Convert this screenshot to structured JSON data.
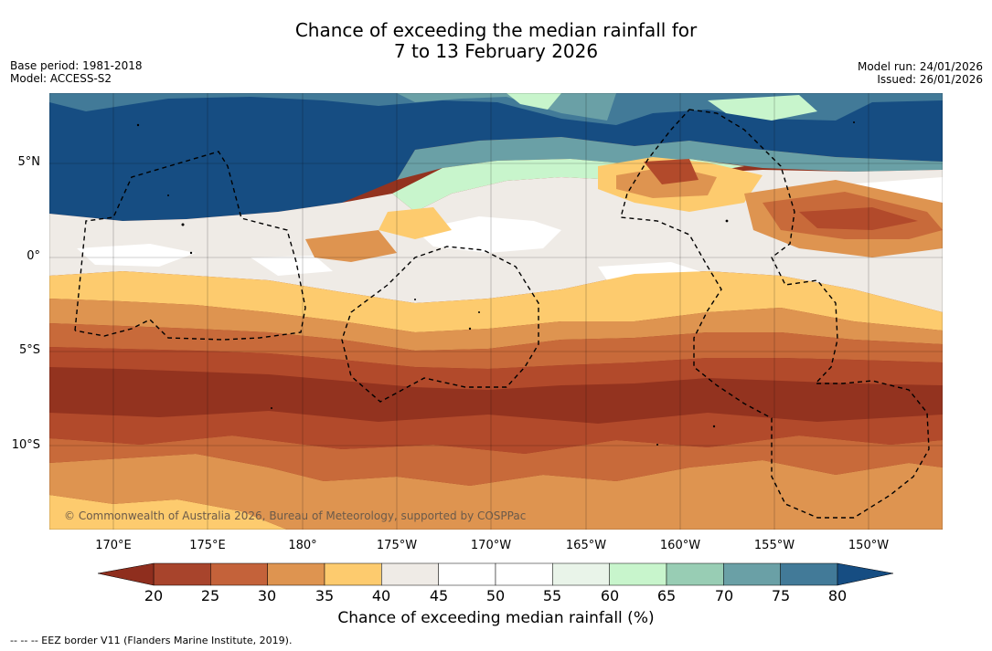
{
  "title": {
    "line1": "Chance of exceeding the median rainfall for",
    "line2": "7 to 13 February 2026"
  },
  "meta_left": {
    "base_period": "Base period: 1981-2018",
    "model": "Model: ACCESS-S2"
  },
  "meta_right": {
    "model_run": "Model run: 24/01/2026",
    "issued": "Issued: 26/01/2026"
  },
  "copyright": "© Commonwealth of Australia 2026, Bureau of Meteorology, supported by COSPPac",
  "axes": {
    "lat_labels": [
      "5°N",
      "0°",
      "5°S",
      "10°S"
    ],
    "lon_labels": [
      "170°E",
      "175°E",
      "180°",
      "175°W",
      "170°W",
      "165°W",
      "160°W",
      "155°W",
      "150°W"
    ]
  },
  "colorbar": {
    "title": "Chance of exceeding median rainfall (%)",
    "ticks": [
      "20",
      "25",
      "30",
      "35",
      "40",
      "45",
      "50",
      "55",
      "60",
      "65",
      "70",
      "75",
      "80"
    ],
    "under_color": "#8f2e1e",
    "over_color": "#164d82",
    "bin_colors": [
      "#a8442c",
      "#c4623a",
      "#de9450",
      "#fdcb6e",
      "#efebe6",
      "#ffffff",
      "#ffffff",
      "#e9f4e9",
      "#c8f5cc",
      "#98cdb4",
      "#6aa0a6",
      "#427a98"
    ]
  },
  "footer": "-- -- -- EEZ border V11 (Flanders Marine Institute, 2019).",
  "colors": {
    "dry_strong": "#93331f",
    "dry": "#b24a2b",
    "dry_mid": "#c86a3a",
    "dry_light": "#de9450",
    "dry_pale": "#fdcb6e",
    "neutral": "#efebe6",
    "wet_light": "#c8f5cc",
    "wet": "#98cdb4",
    "wet_mid": "#6aa0a6",
    "wet_strong": "#427a98",
    "wet_max": "#164d82"
  }
}
